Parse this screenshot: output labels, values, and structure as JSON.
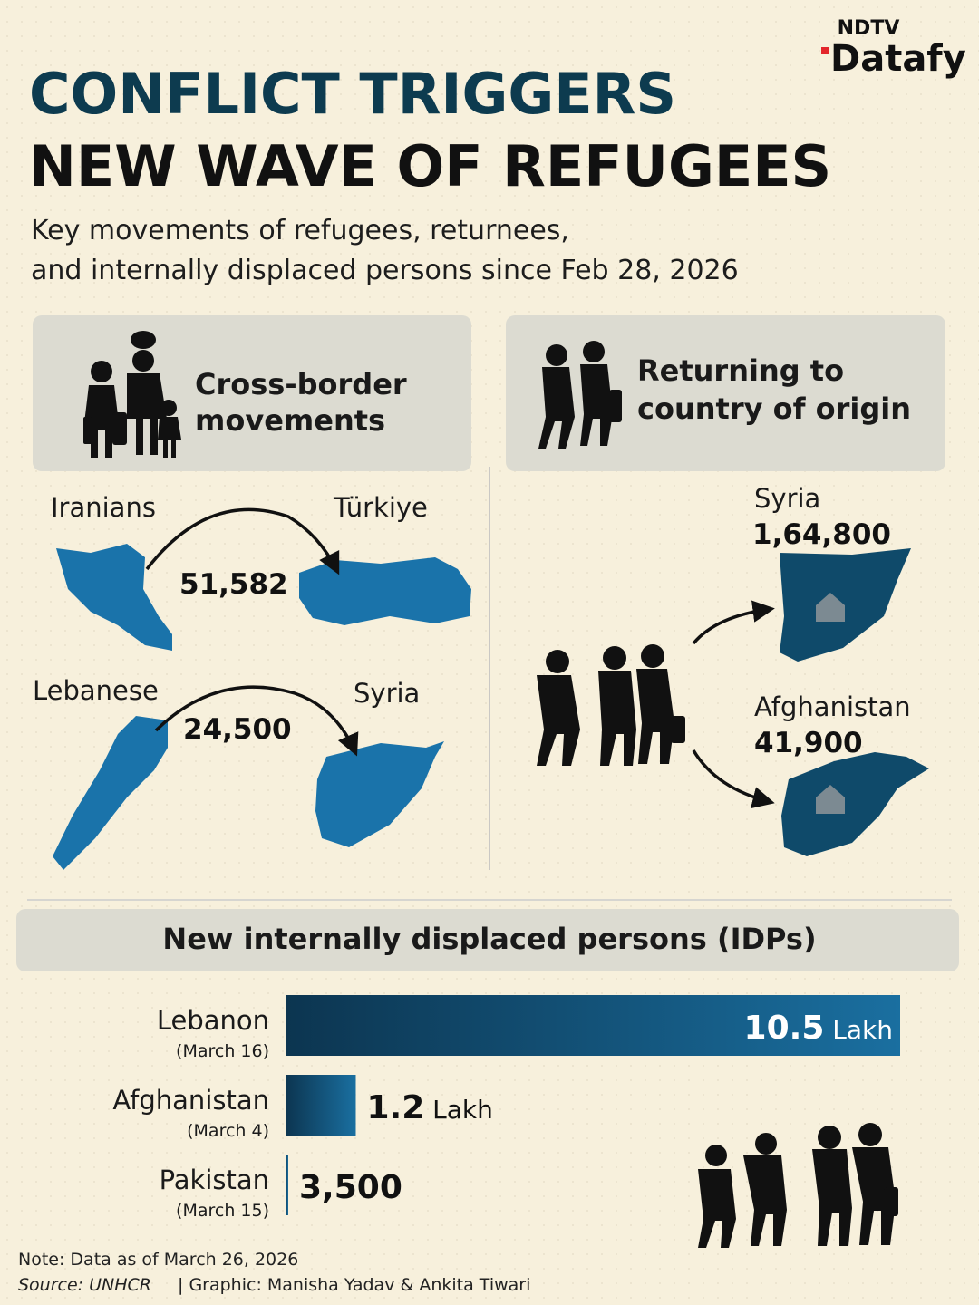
{
  "logo": {
    "top": "NDTV",
    "bottom": "Datafy"
  },
  "title": [
    "CONFLICT TRIGGERS",
    "NEW WAVE OF REFUGEES"
  ],
  "subtitle": [
    "Key movements of refugees, returnees,",
    "and internally displaced persons since Feb 28, 2026"
  ],
  "cross_border": {
    "heading": [
      "Cross-border",
      "movements"
    ],
    "flows": [
      {
        "from": "Iranians",
        "to": "Türkiye",
        "count": "51,582"
      },
      {
        "from": "Lebanese",
        "to": "Syria",
        "count": "24,500"
      }
    ]
  },
  "returning": {
    "heading": [
      "Returning to",
      "country of origin"
    ],
    "flows": [
      {
        "to": "Syria",
        "count": "1,64,800"
      },
      {
        "to": "Afghanistan",
        "count": "41,900"
      }
    ]
  },
  "chart_data": {
    "type": "bar",
    "orientation": "horizontal",
    "title": "New internally displaced persons (IDPs)",
    "categories": [
      "Lebanon",
      "Afghanistan",
      "Pakistan"
    ],
    "dates": [
      "(March 16)",
      "(March 4)",
      "(March 15)"
    ],
    "values": [
      1050000,
      120000,
      3500
    ],
    "value_labels": [
      "10.5 Lakh",
      "1.2 Lakh",
      "3,500"
    ],
    "xlim": [
      0,
      1050000
    ],
    "color": "#1a6fa0"
  },
  "note": "Note: Data as of March 26, 2026",
  "source": "Source: UNHCR",
  "credit": "| Graphic: Manisha Yadav & Ankita Tiwari"
}
